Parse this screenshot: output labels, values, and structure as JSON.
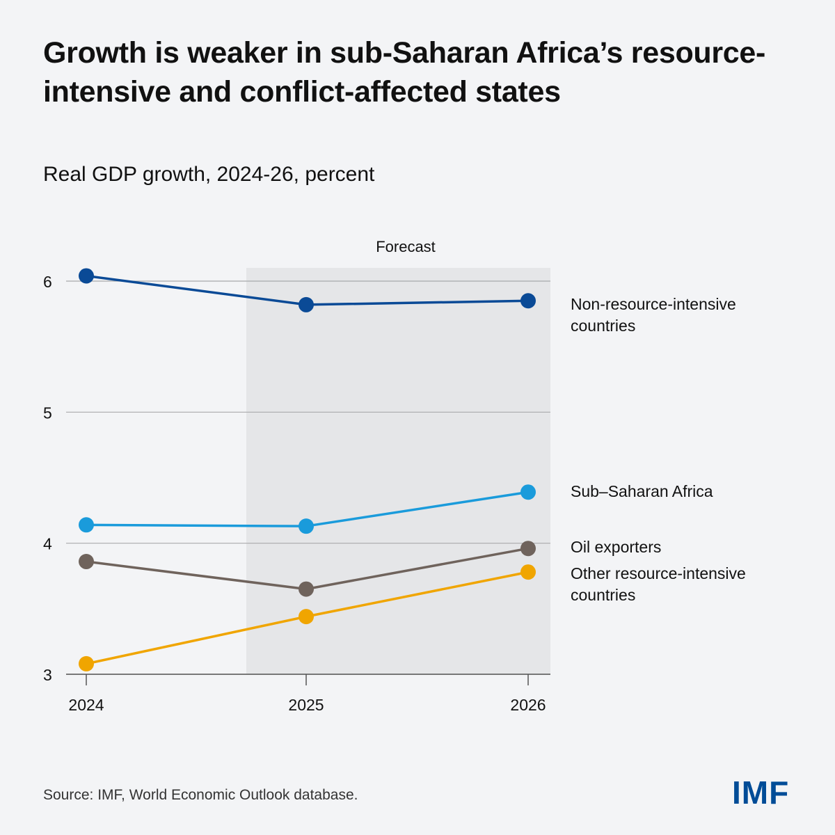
{
  "title": "Growth is weaker in sub-Saharan Africa’s resource-intensive and conflict-affected states",
  "chart_data": {
    "type": "line",
    "title": "Growth is weaker in sub-Saharan Africa’s resource-intensive and conflict-affected states",
    "subtitle": "Real GDP growth, 2024-26, percent",
    "x": [
      "2024",
      "2025",
      "2026"
    ],
    "ylim": [
      3,
      6
    ],
    "yticks": [
      "3",
      "4",
      "5",
      "6"
    ],
    "grid": true,
    "forecast_label": "Forecast",
    "forecast_range": [
      "2025",
      "2026"
    ],
    "series": [
      {
        "name": "Non-resource-intensive countries",
        "values": [
          6.04,
          5.82,
          5.85
        ],
        "color": "#0a4a96"
      },
      {
        "name": "Sub–Saharan Africa",
        "values": [
          4.14,
          4.13,
          4.39
        ],
        "color": "#1a9bdb"
      },
      {
        "name": "Oil exporters",
        "values": [
          3.86,
          3.65,
          3.96
        ],
        "color": "#6f635c"
      },
      {
        "name": "Other resource-intensive countries",
        "values": [
          3.08,
          3.44,
          3.78
        ],
        "color": "#f0a500"
      }
    ]
  },
  "source": "Source:  IMF, World Economic Outlook database.",
  "logo": "IMF"
}
